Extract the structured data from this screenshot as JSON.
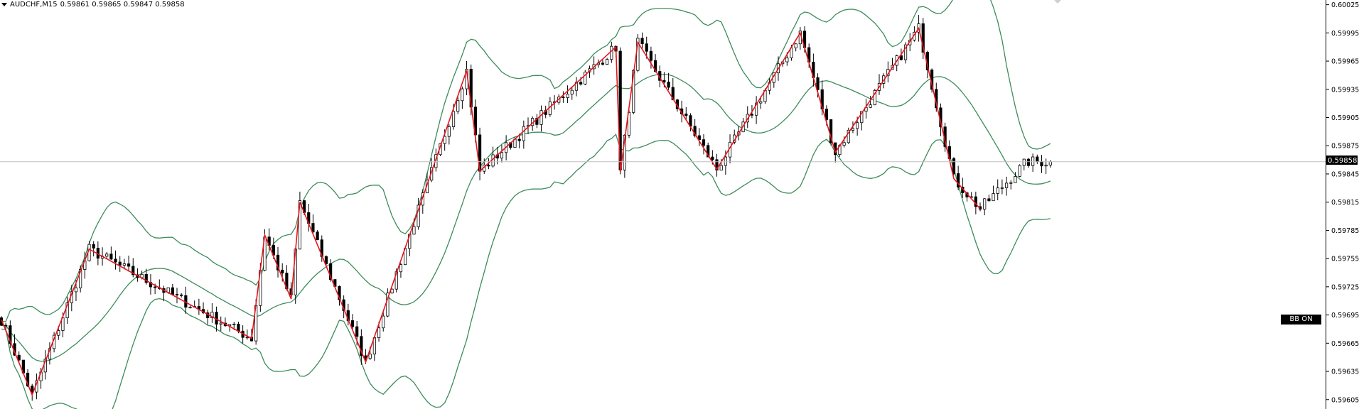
{
  "header": {
    "symbol": "AUDCHF,M15",
    "ohlc": "0.59861 0.59865 0.59847 0.59858"
  },
  "badge": {
    "label": "BB ON"
  },
  "colors": {
    "background": "#ffffff",
    "bull_body": "#ffffff",
    "bear_body": "#000000",
    "wick": "#000000",
    "zigzag": "#e8141c",
    "bands": "#3c8c5a",
    "price_line": "#c0c0c0"
  },
  "chart_data": {
    "type": "candlestick",
    "symbol": "AUDCHF",
    "timeframe": "M15",
    "ylim": [
      0.59595,
      0.6003
    ],
    "y_ticks": [
      "0.60025",
      "0.59995",
      "0.59965",
      "0.59935",
      "0.59905",
      "0.59875",
      "0.59845",
      "0.59815",
      "0.59785",
      "0.59755",
      "0.59725",
      "0.59695",
      "0.59665",
      "0.59635",
      "0.59605"
    ],
    "current_price": "0.59858",
    "bar_count": 240,
    "zigzag": [
      [
        0,
        0.5969
      ],
      [
        7,
        0.5961
      ],
      [
        20,
        0.59765
      ],
      [
        57,
        0.5967
      ],
      [
        60,
        0.5978
      ],
      [
        66,
        0.59712
      ],
      [
        68,
        0.59815
      ],
      [
        83,
        0.59645
      ],
      [
        106,
        0.59955
      ],
      [
        109,
        0.59848
      ],
      [
        140,
        0.5998
      ],
      [
        141,
        0.59847
      ],
      [
        145,
        0.59985
      ],
      [
        163,
        0.5985
      ],
      [
        182,
        0.59995
      ],
      [
        190,
        0.59868
      ],
      [
        209,
        0.6
      ],
      [
        217,
        0.5984
      ],
      [
        223,
        0.59808
      ]
    ],
    "indicators": [
      "Bollinger Bands",
      "ZigZag"
    ]
  }
}
